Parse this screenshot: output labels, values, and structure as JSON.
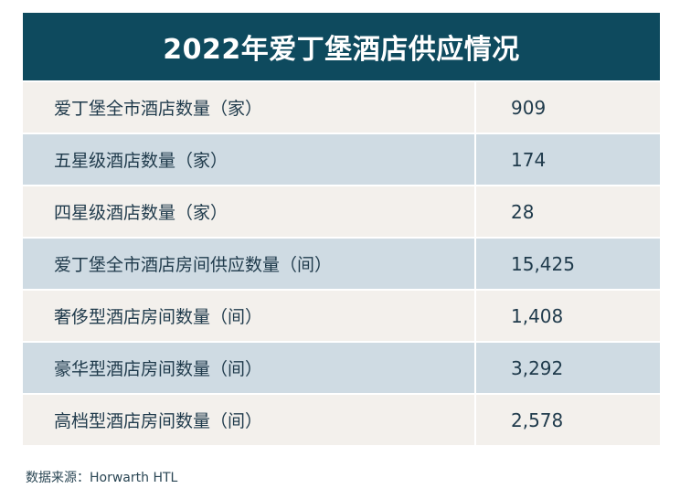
{
  "title": "2022年爱丁堡酒店供应情况",
  "rows": [
    {
      "label": "爱丁堡全市酒店数量（家）",
      "value": "909"
    },
    {
      "label": "五星级酒店数量（家）",
      "value": "174"
    },
    {
      "label": "四星级酒店数量（家）",
      "value": "28"
    },
    {
      "label": "爱丁堡全市酒店房间供应数量（间）",
      "value": "15,425"
    },
    {
      "label": "奢侈型酒店房间数量（间）",
      "value": "1,408"
    },
    {
      "label": "豪华型酒店房间数量（间）",
      "value": "3,292"
    },
    {
      "label": "高档型酒店房间数量（间）",
      "value": "2,578"
    }
  ],
  "source": "数据来源：Horwarth HTL",
  "colors": {
    "header_bg": "#0e4a5e",
    "row_light": "#f3f0ec",
    "row_dark": "#cfdbe3",
    "text": "#1f3a4b"
  }
}
